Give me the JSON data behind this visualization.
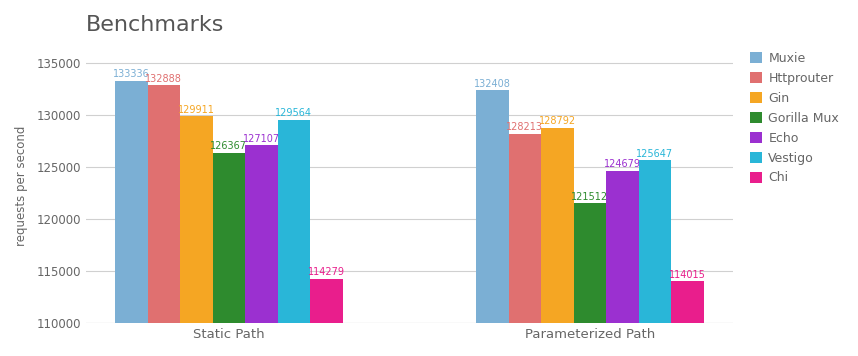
{
  "title": "Benchmarks",
  "ylabel": "requests per second",
  "categories": [
    "Static Path",
    "Parameterized Path"
  ],
  "series": [
    {
      "label": "Muxie",
      "color": "#7bafd4",
      "values": [
        133336,
        132408
      ]
    },
    {
      "label": "Httprouter",
      "color": "#e07070",
      "values": [
        132888,
        128213
      ]
    },
    {
      "label": "Gin",
      "color": "#f5a623",
      "values": [
        129911,
        128792
      ]
    },
    {
      "label": "Gorilla Mux",
      "color": "#2e8b2e",
      "values": [
        126367,
        121512
      ]
    },
    {
      "label": "Echo",
      "color": "#9b30d0",
      "values": [
        127107,
        124679
      ]
    },
    {
      "label": "Vestigo",
      "color": "#29b6d8",
      "values": [
        129564,
        125647
      ]
    },
    {
      "label": "Chi",
      "color": "#e91e8c",
      "values": [
        114279,
        114015
      ]
    }
  ],
  "ylim": [
    110000,
    136500
  ],
  "yticks": [
    110000,
    115000,
    120000,
    125000,
    130000,
    135000
  ],
  "title_fontsize": 16,
  "label_fontsize": 7,
  "legend_fontsize": 9,
  "bar_width": 0.09,
  "background_color": "#ffffff",
  "grid_color": "#d0d0d0",
  "axis_color": "#aaaaaa",
  "text_color": "#666666"
}
